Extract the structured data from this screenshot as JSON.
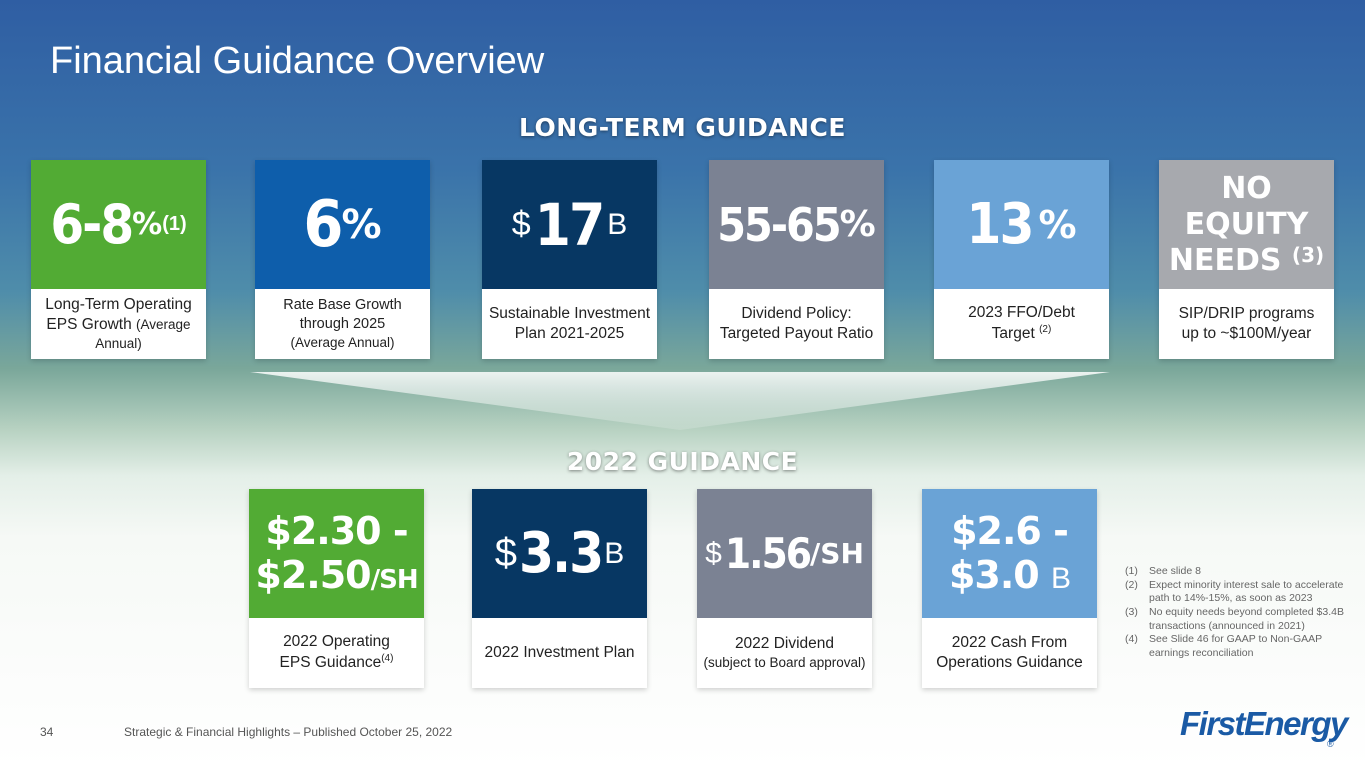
{
  "title": "Financial Guidance Overview",
  "long_term_heading": "LONG-TERM GUIDANCE",
  "guidance_2022_heading": "2022 GUIDANCE",
  "long_term": [
    {
      "value": "6-8",
      "unit": "%",
      "note": "(1)",
      "label_1": "Long-Term Operating",
      "label_2": "EPS Growth",
      "label_3": "(Average",
      "label_4": "Annual)",
      "color": "#52ab34"
    },
    {
      "value": "6",
      "unit": "%",
      "label_1": "Rate Base Growth",
      "label_2": "through 2025",
      "label_3": "(Average Annual)",
      "color": "#0e5eab"
    },
    {
      "prefix": "$",
      "value": "17",
      "suffix": "B",
      "label_1": "Sustainable Investment",
      "label_2": "Plan 2021-2025",
      "color": "#073763"
    },
    {
      "value": "55-65",
      "unit": "%",
      "label_1": "Dividend Policy:",
      "label_2": "Targeted Payout Ratio",
      "color": "#7b8293"
    },
    {
      "value": "13",
      "unit": "%",
      "label_1": "2023 FFO/Debt",
      "label_2": "Target",
      "note": "(2)",
      "color": "#6aa3d6"
    },
    {
      "line_1": "NO EQUITY",
      "line_2": "NEEDS",
      "note": "(3)",
      "label_1": "SIP/DRIP programs",
      "label_2": "up to ~$100M/year",
      "color": "#a7a9ae"
    }
  ],
  "guidance_2022": [
    {
      "line_1": "$2.30 -",
      "line_2": "$2.50",
      "unit": "/SH",
      "label_1": "2022 Operating",
      "label_2": "EPS Guidance",
      "note": "(4)",
      "color": "#52ab34"
    },
    {
      "prefix": "$",
      "value": "3.3",
      "suffix": "B",
      "label_1": "2022 Investment Plan",
      "color": "#073763"
    },
    {
      "prefix": "$",
      "value": "1.56",
      "unit": "/SH",
      "label_1": "2022 Dividend",
      "label_2": "(subject to Board approval)",
      "color": "#7b8293"
    },
    {
      "line_1": "$2.6 -",
      "line_2": "$3.0",
      "suffix": "B",
      "label_1": "2022 Cash From",
      "label_2": "Operations Guidance",
      "color": "#6aa3d6"
    }
  ],
  "footnotes": [
    {
      "num": "(1)",
      "text": "See slide 8"
    },
    {
      "num": "(2)",
      "text": "Expect minority interest sale to accelerate path to 14%-15%, as soon as 2023"
    },
    {
      "num": "(3)",
      "text": "No equity needs beyond completed $3.4B transactions (announced in 2021)"
    },
    {
      "num": "(4)",
      "text": "See Slide 46 for GAAP to Non-GAAP earnings reconciliation"
    }
  ],
  "footer": {
    "page_number": "34",
    "text": "Strategic & Financial Highlights – Published October 25, 2022",
    "logo": "FirstEnergy",
    "logo_mark": "®"
  }
}
